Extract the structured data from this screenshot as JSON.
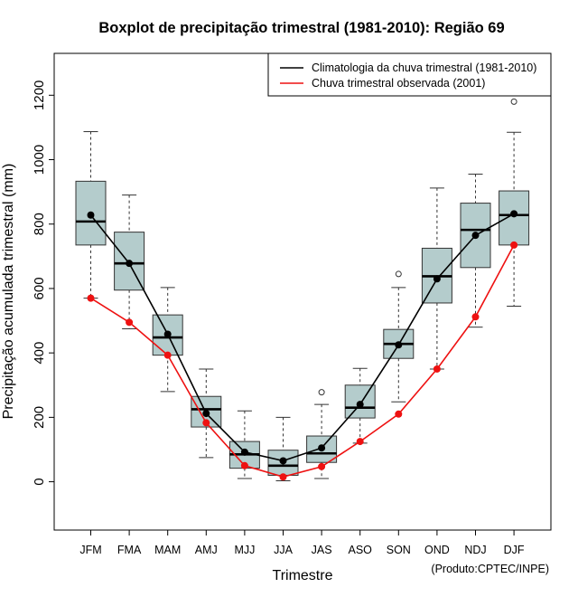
{
  "chart_data": {
    "type": "boxplot",
    "title": "Boxplot de precipitação trimestral (1981-2010): Região 69",
    "xlabel": "Trimestre",
    "ylabel": "Precipitação acumulada trimestral (mm)",
    "credit": "(Produto:CPTEC/INPE)",
    "ylim": [
      -150,
      1330
    ],
    "yticks": [
      0,
      200,
      400,
      600,
      800,
      1000,
      1200
    ],
    "categories": [
      "JFM",
      "FMA",
      "MAM",
      "AMJ",
      "MJJ",
      "JJA",
      "JAS",
      "ASO",
      "SON",
      "OND",
      "NDJ",
      "DJF"
    ],
    "boxes": [
      {
        "min": 570,
        "q1": 735,
        "median": 808,
        "q3": 933,
        "max": 1087,
        "outliers": []
      },
      {
        "min": 475,
        "q1": 595,
        "median": 678,
        "q3": 775,
        "max": 890,
        "outliers": []
      },
      {
        "min": 280,
        "q1": 393,
        "median": 448,
        "q3": 518,
        "max": 603,
        "outliers": []
      },
      {
        "min": 75,
        "q1": 170,
        "median": 225,
        "q3": 265,
        "max": 350,
        "outliers": []
      },
      {
        "min": 10,
        "q1": 42,
        "median": 85,
        "q3": 125,
        "max": 220,
        "outliers": []
      },
      {
        "min": 3,
        "q1": 20,
        "median": 50,
        "q3": 98,
        "max": 200,
        "outliers": []
      },
      {
        "min": 10,
        "q1": 60,
        "median": 88,
        "q3": 142,
        "max": 240,
        "outliers": [
          278
        ]
      },
      {
        "min": 120,
        "q1": 198,
        "median": 230,
        "q3": 300,
        "max": 352,
        "outliers": []
      },
      {
        "min": 248,
        "q1": 383,
        "median": 428,
        "q3": 473,
        "max": 603,
        "outliers": [
          645
        ]
      },
      {
        "min": 350,
        "q1": 555,
        "median": 638,
        "q3": 725,
        "max": 912,
        "outliers": []
      },
      {
        "min": 480,
        "q1": 665,
        "median": 782,
        "q3": 865,
        "max": 955,
        "outliers": []
      },
      {
        "min": 545,
        "q1": 735,
        "median": 828,
        "q3": 903,
        "max": 1085,
        "outliers": [
          1180
        ]
      }
    ],
    "series": [
      {
        "name": "Climatologia da chuva trimestral (1981-2010)",
        "color": "#000000",
        "values": [
          828,
          678,
          458,
          212,
          92,
          65,
          105,
          240,
          425,
          630,
          765,
          832
        ]
      },
      {
        "name": "Chuva trimestral observada (2001)",
        "color": "#ee1111",
        "values": [
          570,
          495,
          393,
          183,
          50,
          15,
          47,
          125,
          210,
          350,
          512,
          735
        ]
      }
    ],
    "box_fill": "#b4cccc",
    "legend_position": "top-right"
  }
}
